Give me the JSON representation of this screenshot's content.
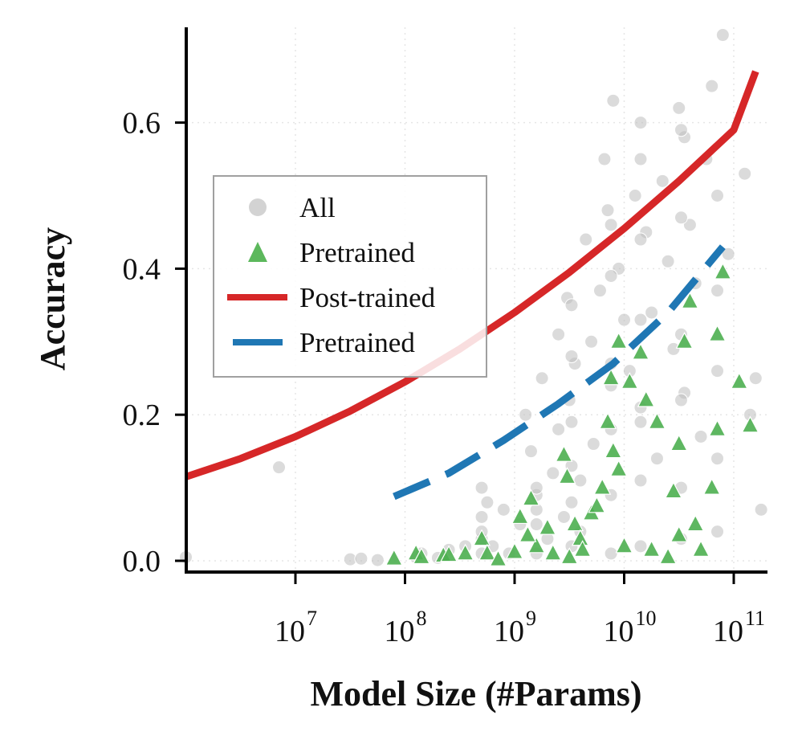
{
  "chart_data": {
    "type": "scatter",
    "title": "",
    "xlabel": "Model Size (#Params)",
    "ylabel": "Accuracy",
    "xscale": "log",
    "xlim_log10": [
      5.9,
      11.3
    ],
    "ylim": [
      -0.015,
      0.73
    ],
    "x_ticks": [
      {
        "base": "10",
        "exp": "7",
        "value": 7
      },
      {
        "base": "10",
        "exp": "8",
        "value": 8
      },
      {
        "base": "10",
        "exp": "9",
        "value": 9
      },
      {
        "base": "10",
        "exp": "10",
        "value": 10
      },
      {
        "base": "10",
        "exp": "11",
        "value": 11
      }
    ],
    "y_ticks": [
      {
        "label": "0.0",
        "value": 0.0
      },
      {
        "label": "0.2",
        "value": 0.2
      },
      {
        "label": "0.4",
        "value": 0.4
      },
      {
        "label": "0.6",
        "value": 0.6
      }
    ],
    "grid": "dotted",
    "legend": {
      "position": "center-left",
      "entries": [
        {
          "label": "All",
          "marker": "circle",
          "color": "#c8c8c8"
        },
        {
          "label": "Pretrained",
          "marker": "triangle",
          "color": "#5cb85c"
        },
        {
          "label": "Post-trained",
          "marker": "line",
          "color": "#d62728"
        },
        {
          "label": "Pretrained",
          "marker": "dashed-line",
          "color": "#1f77b4"
        }
      ]
    },
    "series": [
      {
        "name": "All",
        "kind": "scatter",
        "color": "#bdbdbd",
        "x_log10": [
          6.0,
          6.85,
          7.5,
          7.6,
          7.75,
          8.1,
          8.15,
          8.3,
          8.4,
          8.55,
          8.7,
          8.7,
          8.7,
          8.75,
          8.8,
          8.9,
          8.95,
          9.05,
          9.1,
          9.15,
          9.2,
          9.25,
          9.3,
          9.35,
          9.4,
          9.4,
          9.45,
          9.48,
          9.5,
          9.55,
          9.6,
          9.6,
          9.65,
          9.7,
          9.72,
          9.78,
          9.82,
          9.85,
          9.88,
          9.9,
          9.95,
          10.0,
          10.05,
          10.1,
          10.15,
          10.15,
          10.2,
          10.25,
          10.3,
          10.35,
          10.4,
          10.45,
          10.5,
          10.55,
          10.55,
          10.6,
          10.65,
          10.7,
          10.75,
          10.8,
          10.85,
          10.9,
          10.95,
          11.1,
          11.15,
          11.2,
          11.25,
          9.52,
          9.52,
          9.52,
          9.52,
          9.52,
          9.52,
          9.88,
          9.88,
          9.88,
          9.88,
          9.88,
          9.88,
          10.15,
          10.15,
          10.15,
          10.15,
          10.15,
          10.15,
          10.52,
          10.52,
          10.52,
          10.52,
          10.52,
          10.52,
          10.85,
          10.85,
          10.85,
          10.85,
          9.2,
          9.2,
          9.2,
          9.2,
          8.7,
          8.7
        ],
        "y": [
          0.005,
          0.128,
          0.002,
          0.003,
          0.001,
          0.005,
          0.01,
          0.004,
          0.015,
          0.02,
          0.1,
          0.06,
          0.03,
          0.08,
          0.02,
          0.07,
          0.01,
          0.05,
          0.2,
          0.15,
          0.09,
          0.25,
          0.03,
          0.12,
          0.31,
          0.18,
          0.06,
          0.36,
          0.22,
          0.27,
          0.11,
          0.04,
          0.44,
          0.3,
          0.16,
          0.37,
          0.55,
          0.48,
          0.24,
          0.63,
          0.4,
          0.33,
          0.26,
          0.5,
          0.6,
          0.19,
          0.45,
          0.34,
          0.14,
          0.52,
          0.41,
          0.29,
          0.62,
          0.58,
          0.23,
          0.46,
          0.38,
          0.17,
          0.55,
          0.65,
          0.5,
          0.72,
          0.42,
          0.53,
          0.2,
          0.25,
          0.07,
          0.02,
          0.08,
          0.13,
          0.19,
          0.28,
          0.35,
          0.01,
          0.09,
          0.18,
          0.27,
          0.39,
          0.46,
          0.02,
          0.11,
          0.21,
          0.33,
          0.44,
          0.55,
          0.03,
          0.1,
          0.22,
          0.31,
          0.47,
          0.59,
          0.04,
          0.14,
          0.26,
          0.37,
          0.01,
          0.05,
          0.1,
          0.07,
          0.01,
          0.04
        ]
      },
      {
        "name": "Pretrained",
        "kind": "scatter",
        "color": "#4caf50",
        "x_log10": [
          7.9,
          8.1,
          8.15,
          8.35,
          8.4,
          8.7,
          8.75,
          8.85,
          9.0,
          9.15,
          9.2,
          9.3,
          9.45,
          9.48,
          9.5,
          9.55,
          9.6,
          9.7,
          9.8,
          9.85,
          9.88,
          9.9,
          9.95,
          10.0,
          10.05,
          10.15,
          10.2,
          10.3,
          10.4,
          10.45,
          10.5,
          10.55,
          10.6,
          10.65,
          10.7,
          10.8,
          10.85,
          10.9,
          11.05,
          11.15,
          8.55,
          9.05,
          9.35,
          9.75,
          9.95,
          10.25,
          10.5,
          10.85,
          9.12,
          9.62
        ],
        "y": [
          0.003,
          0.01,
          0.005,
          0.007,
          0.008,
          0.03,
          0.01,
          0.002,
          0.012,
          0.085,
          0.02,
          0.045,
          0.145,
          0.115,
          0.005,
          0.05,
          0.03,
          0.065,
          0.1,
          0.19,
          0.25,
          0.15,
          0.3,
          0.02,
          0.245,
          0.285,
          0.22,
          0.19,
          0.005,
          0.095,
          0.16,
          0.3,
          0.355,
          0.05,
          0.015,
          0.1,
          0.18,
          0.395,
          0.245,
          0.185,
          0.01,
          0.06,
          0.01,
          0.075,
          0.125,
          0.015,
          0.035,
          0.31,
          0.035,
          0.015
        ]
      },
      {
        "name": "Post-trained",
        "kind": "fit-line",
        "color": "#d62728",
        "x_log10": [
          6.0,
          6.5,
          7.0,
          7.5,
          8.0,
          8.5,
          9.0,
          9.5,
          10.0,
          10.5,
          11.0,
          11.2
        ],
        "y": [
          0.115,
          0.14,
          0.17,
          0.205,
          0.245,
          0.29,
          0.34,
          0.395,
          0.455,
          0.52,
          0.59,
          0.67
        ]
      },
      {
        "name": "Pretrained",
        "kind": "fit-line-dashed",
        "color": "#1f77b4",
        "x_log10": [
          7.9,
          8.4,
          8.9,
          9.4,
          9.9,
          10.4,
          10.9
        ],
        "y": [
          0.088,
          0.12,
          0.165,
          0.215,
          0.27,
          0.34,
          0.43
        ]
      }
    ]
  }
}
